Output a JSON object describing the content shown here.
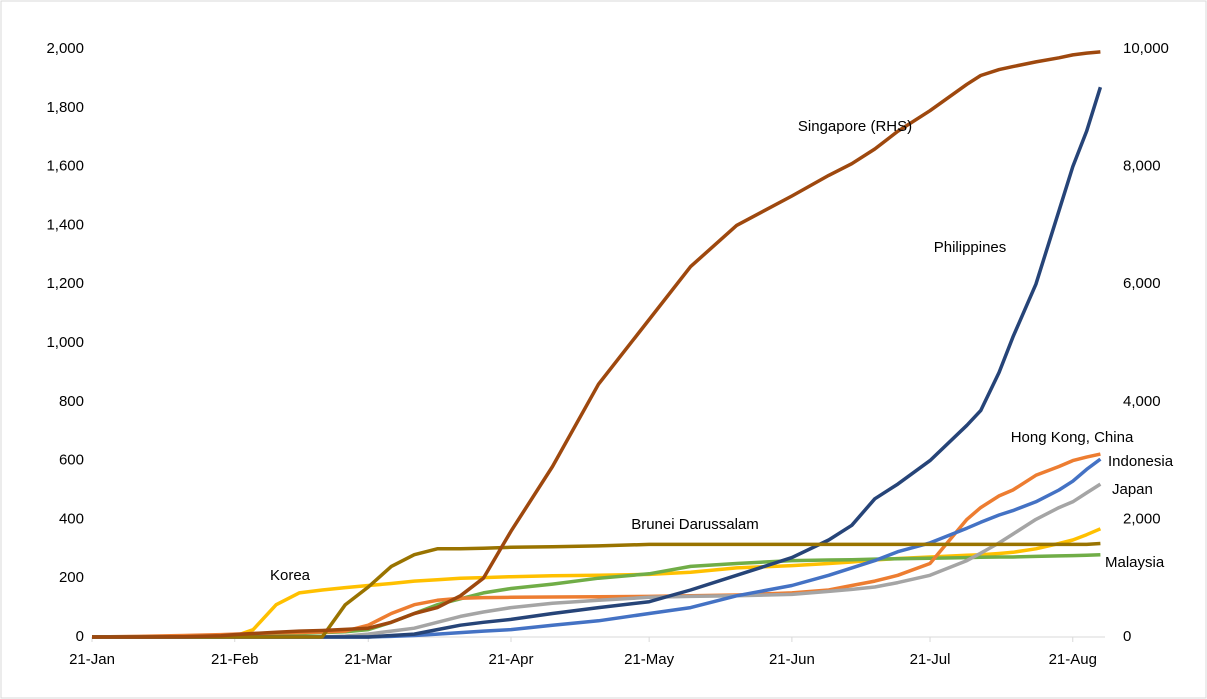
{
  "chart_data": {
    "type": "line",
    "x": [
      0,
      10,
      20,
      28,
      31,
      35,
      40,
      45,
      50,
      55,
      60,
      65,
      70,
      75,
      80,
      85,
      91,
      100,
      110,
      121,
      130,
      140,
      152,
      160,
      165,
      170,
      175,
      182,
      190,
      193,
      197,
      200,
      205,
      210,
      213,
      216,
      219
    ],
    "xlim": [
      0,
      220
    ],
    "xticks": [
      {
        "value": 0,
        "label": "21-Jan"
      },
      {
        "value": 31,
        "label": "21-Feb"
      },
      {
        "value": 60,
        "label": "21-Mar"
      },
      {
        "value": 91,
        "label": "21-Apr"
      },
      {
        "value": 121,
        "label": "21-May"
      },
      {
        "value": 152,
        "label": "21-Jun"
      },
      {
        "value": 182,
        "label": "21-Jul"
      },
      {
        "value": 213,
        "label": "21-Aug"
      }
    ],
    "ylim": [
      0,
      2000
    ],
    "yticks": [
      0,
      200,
      400,
      600,
      800,
      {
        "value": 1000,
        "label": "1,000"
      },
      {
        "value": 1200,
        "label": "1,200"
      },
      {
        "value": 1400,
        "label": "1,400"
      },
      {
        "value": 1600,
        "label": "1,600"
      },
      {
        "value": 1800,
        "label": "1,800"
      },
      {
        "value": 2000,
        "label": "2,000"
      }
    ],
    "y2lim": [
      0,
      10000
    ],
    "y2ticks": [
      0,
      {
        "value": 2000,
        "label": "2,000"
      },
      {
        "value": 4000,
        "label": "4,000"
      },
      {
        "value": 6000,
        "label": "6,000"
      },
      {
        "value": 8000,
        "label": "8,000"
      },
      {
        "value": 10000,
        "label": "10,000"
      }
    ],
    "series": [
      {
        "name": "Korea",
        "color": "#ffc000",
        "values": [
          1,
          1,
          2,
          2,
          3,
          25,
          110,
          150,
          160,
          168,
          175,
          182,
          190,
          195,
          200,
          202,
          205,
          208,
          210,
          213,
          220,
          235,
          243,
          250,
          255,
          262,
          267,
          272,
          278,
          280,
          284,
          288,
          300,
          318,
          330,
          348,
          368
        ]
      },
      {
        "name": "Malaysia",
        "color": "#70ad47",
        "values": [
          0,
          0,
          0,
          0,
          2,
          5,
          10,
          12,
          15,
          18,
          25,
          50,
          80,
          110,
          130,
          150,
          165,
          180,
          200,
          215,
          240,
          250,
          260,
          262,
          263,
          265,
          266,
          268,
          270,
          271,
          272,
          272,
          274,
          276,
          277,
          278,
          280
        ]
      },
      {
        "name": "Hong Kong, China",
        "color": "#ed7d31",
        "values": [
          0,
          2,
          5,
          8,
          10,
          12,
          14,
          15,
          17,
          20,
          40,
          80,
          110,
          125,
          132,
          134,
          135,
          136,
          137,
          138,
          140,
          143,
          150,
          160,
          175,
          190,
          210,
          250,
          400,
          440,
          480,
          500,
          550,
          580,
          600,
          612,
          622
        ]
      },
      {
        "name": "Japan",
        "color": "#a5a5a5",
        "values": [
          0,
          0,
          0,
          0,
          0,
          0,
          0,
          0,
          0,
          3,
          10,
          20,
          30,
          50,
          70,
          85,
          100,
          115,
          125,
          135,
          138,
          140,
          145,
          155,
          162,
          170,
          185,
          210,
          260,
          285,
          320,
          350,
          400,
          440,
          460,
          490,
          520
        ]
      },
      {
        "name": "Indonesia",
        "color": "#4472c4",
        "values": [
          0,
          0,
          0,
          0,
          0,
          0,
          0,
          0,
          0,
          0,
          0,
          2,
          5,
          10,
          15,
          20,
          25,
          40,
          55,
          80,
          100,
          140,
          175,
          210,
          235,
          260,
          290,
          320,
          370,
          390,
          415,
          430,
          460,
          500,
          530,
          570,
          605
        ]
      },
      {
        "name": "Philippines",
        "color": "#264478",
        "values": [
          0,
          0,
          0,
          0,
          0,
          0,
          0,
          0,
          0,
          0,
          0,
          5,
          10,
          25,
          40,
          50,
          60,
          80,
          100,
          120,
          160,
          210,
          270,
          330,
          380,
          470,
          520,
          600,
          720,
          770,
          900,
          1020,
          1200,
          1450,
          1600,
          1720,
          1870
        ]
      },
      {
        "name": "Brunei Darussalam",
        "color": "#997300",
        "values": [
          0,
          0,
          0,
          0,
          0,
          0,
          0,
          0,
          0,
          110,
          170,
          240,
          280,
          300,
          300,
          302,
          305,
          307,
          310,
          315,
          315,
          315,
          315,
          315,
          315,
          315,
          315,
          315,
          315,
          315,
          315,
          315,
          315,
          315,
          315,
          315,
          318
        ]
      },
      {
        "name": "Singapore (RHS)",
        "color": "#9e480e",
        "axis": "y2",
        "values": [
          0,
          0,
          5,
          20,
          40,
          60,
          80,
          100,
          110,
          130,
          150,
          250,
          400,
          500,
          700,
          1000,
          1800,
          2900,
          4300,
          5400,
          6300,
          7000,
          7500,
          7850,
          8050,
          8300,
          8600,
          8950,
          9400,
          9550,
          9650,
          9700,
          9780,
          9850,
          9900,
          9930,
          9950
        ]
      }
    ]
  }
}
